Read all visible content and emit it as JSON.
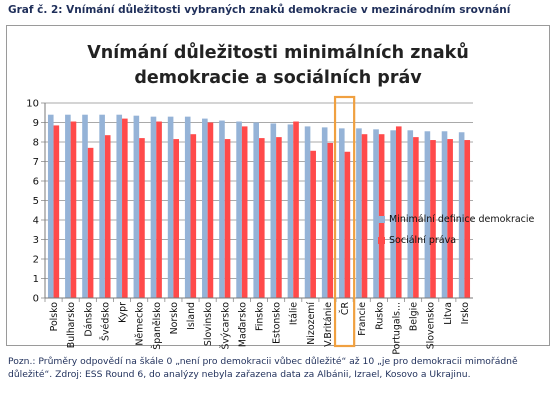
{
  "caption": "Graf č. 2: Vnímání důležitosti vybraných znaků demokracie v mezinárodním srovnání",
  "note": "Pozn.: Průměry odpovědí na škále 0 „není pro demokracii vůbec důležité“ až 10 „je pro demokracii mimořádně důležité“. Zdroj: ESS Round 6, do analýzy nebyla zařazena data za Albánii, Izrael, Kosovo a Ukrajinu.",
  "chart_data": {
    "type": "bar",
    "title_line1": "Vnímání důležitosti minimálních znaků",
    "title_line2": "demokracie a sociálních práv",
    "categories": [
      "Polsko",
      "Bulharsko",
      "Dánsko",
      "Švédsko",
      "Kypr",
      "Německo",
      "Španělsko",
      "Norsko",
      "Island",
      "Slovinsko",
      "Švýcarsko",
      "Maďarsko",
      "Finsko",
      "Estonsko",
      "Itálie",
      "Nizozemí",
      "V.Británie",
      "ČR",
      "Francie",
      "Rusko",
      "Portugals...",
      "Belgie",
      "Slovensko",
      "Litva",
      "Irsko"
    ],
    "series": [
      {
        "name": "Minimální definice demokracie",
        "color": "#95b3d7",
        "values": [
          9.4,
          9.4,
          9.4,
          9.4,
          9.4,
          9.35,
          9.3,
          9.3,
          9.3,
          9.2,
          9.1,
          9.05,
          9.0,
          8.95,
          8.9,
          8.8,
          8.75,
          8.7,
          8.7,
          8.65,
          8.6,
          8.6,
          8.55,
          8.55,
          8.5
        ]
      },
      {
        "name": "Sociální práva",
        "color": "#ff4a4a",
        "values": [
          8.85,
          9.05,
          7.7,
          8.35,
          9.2,
          8.2,
          9.05,
          8.15,
          8.4,
          9.0,
          8.15,
          8.8,
          8.2,
          8.25,
          9.05,
          7.55,
          7.95,
          7.5,
          8.4,
          8.4,
          8.8,
          8.25,
          8.1,
          8.15,
          8.1
        ]
      }
    ],
    "ylim": [
      0,
      10
    ],
    "yticks": [
      0,
      1,
      2,
      3,
      4,
      5,
      6,
      7,
      8,
      9,
      10
    ],
    "grid": true,
    "legend_position": "right",
    "highlight_category": "ČR",
    "highlight_color": "#f0a040"
  }
}
